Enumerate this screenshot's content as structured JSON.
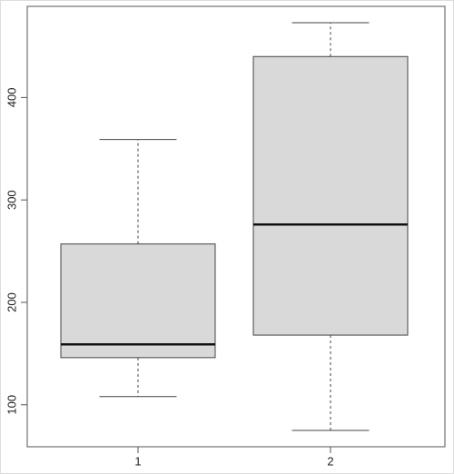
{
  "chart_data": {
    "type": "boxplot",
    "categories": [
      "1",
      "2"
    ],
    "boxes": [
      {
        "min": 108,
        "q1": 146,
        "median": 159,
        "q3": 257,
        "max": 359
      },
      {
        "min": 75,
        "q1": 168,
        "median": 276,
        "q3": 440,
        "max": 473
      }
    ],
    "color": "#d9d9d9",
    "ylim": [
      59,
      489
    ],
    "yticks": [
      100,
      200,
      300,
      400
    ]
  }
}
